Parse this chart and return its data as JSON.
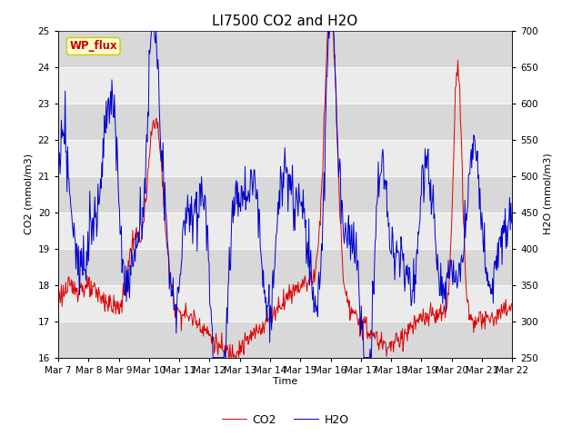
{
  "title": "LI7500 CO2 and H2O",
  "xlabel": "Time",
  "ylabel_left": "CO2 (mmol/m3)",
  "ylabel_right": "H2O (mmol/m3)",
  "co2_ylim": [
    16.0,
    25.0
  ],
  "h2o_ylim": [
    250,
    700
  ],
  "co2_yticks": [
    16.0,
    17.0,
    18.0,
    19.0,
    20.0,
    21.0,
    22.0,
    23.0,
    24.0,
    25.0
  ],
  "h2o_yticks": [
    250,
    300,
    350,
    400,
    450,
    500,
    550,
    600,
    650,
    700
  ],
  "xtick_labels": [
    "Mar 7",
    "Mar 8",
    "Mar 9",
    "Mar 10",
    "Mar 11",
    "Mar 12",
    "Mar 13",
    "Mar 14",
    "Mar 15",
    "Mar 16",
    "Mar 17",
    "Mar 18",
    "Mar 19",
    "Mar 20",
    "Mar 21",
    "Mar 22"
  ],
  "co2_color": "#dd0000",
  "h2o_color": "#0000cc",
  "legend_label_co2": "CO2",
  "legend_label_h2o": "H2O",
  "annotation_text": "WP_flux",
  "annotation_bg": "#ffffcc",
  "annotation_border": "#cccc00",
  "plot_bg_light": "#ebebeb",
  "plot_bg_dark": "#d8d8d8",
  "title_fontsize": 11,
  "axis_fontsize": 8,
  "tick_fontsize": 7.5
}
